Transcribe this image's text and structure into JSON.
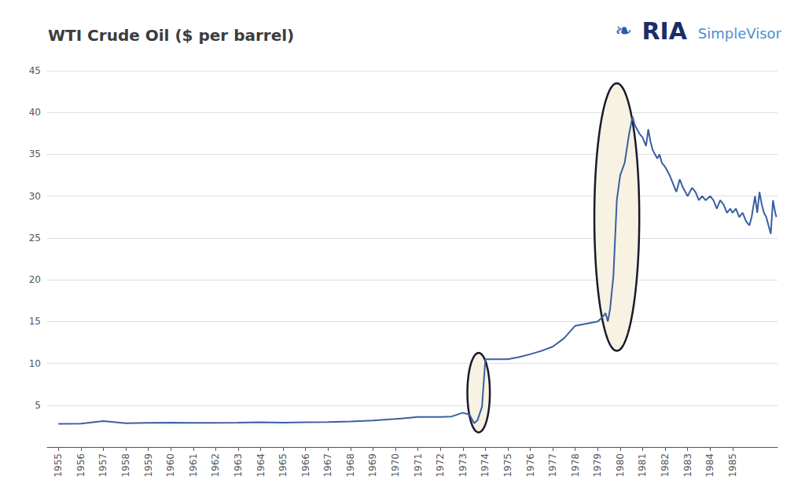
{
  "chart_data": {
    "type": "line",
    "title": "WTI Crude Oil ($ per barrel)",
    "color": "#3a5fa0",
    "grid": "y",
    "xlim": [
      1954.5,
      1987.0
    ],
    "xticks": [
      1955,
      1956,
      1957,
      1958,
      1959,
      1960,
      1961,
      1962,
      1963,
      1964,
      1965,
      1966,
      1967,
      1968,
      1969,
      1970,
      1971,
      1972,
      1973,
      1974,
      1975,
      1976,
      1977,
      1978,
      1979,
      1980,
      1981,
      1982,
      1983,
      1984,
      1985
    ],
    "ylim": [
      0,
      45
    ],
    "yticks": [
      5,
      10,
      15,
      20,
      25,
      30,
      35,
      40,
      45
    ],
    "x": [
      1955.0,
      1956.0,
      1957.0,
      1958.0,
      1959.0,
      1960.0,
      1961.0,
      1962.0,
      1963.0,
      1964.0,
      1965.0,
      1966.0,
      1967.0,
      1968.0,
      1969.0,
      1970.0,
      1971.0,
      1972.0,
      1972.5,
      1973.0,
      1973.3,
      1973.5,
      1973.65,
      1973.85,
      1974.0,
      1974.5,
      1975.0,
      1975.5,
      1976.0,
      1976.5,
      1977.0,
      1977.5,
      1978.0,
      1978.5,
      1979.0,
      1979.2,
      1979.35,
      1979.45,
      1979.55,
      1979.7,
      1979.85,
      1980.0,
      1980.2,
      1980.4,
      1980.55,
      1980.65,
      1980.75,
      1980.85,
      1981.0,
      1981.15,
      1981.25,
      1981.35,
      1981.45,
      1981.55,
      1981.65,
      1981.75,
      1981.85,
      1982.0,
      1982.2,
      1982.35,
      1982.5,
      1982.65,
      1982.8,
      1983.0,
      1983.2,
      1983.35,
      1983.5,
      1983.65,
      1983.8,
      1984.0,
      1984.15,
      1984.3,
      1984.45,
      1984.6,
      1984.75,
      1984.9,
      1985.0,
      1985.15,
      1985.3,
      1985.45,
      1985.6,
      1985.75,
      1985.85,
      1986.0,
      1986.1,
      1986.2,
      1986.3,
      1986.4,
      1986.5,
      1986.6,
      1986.7,
      1986.8,
      1986.9,
      1986.95
    ],
    "values": [
      2.77,
      2.79,
      3.09,
      2.85,
      2.9,
      2.91,
      2.89,
      2.9,
      2.92,
      2.95,
      2.92,
      2.97,
      2.98,
      3.05,
      3.18,
      3.35,
      3.6,
      3.6,
      3.65,
      4.1,
      3.85,
      2.85,
      3.2,
      4.8,
      10.5,
      10.5,
      10.5,
      10.75,
      11.1,
      11.5,
      12.0,
      13.0,
      14.5,
      14.75,
      15.0,
      15.5,
      16.0,
      15.0,
      16.5,
      20.5,
      29.5,
      32.5,
      34.0,
      37.5,
      39.5,
      38.5,
      38.0,
      37.5,
      37.0,
      36.0,
      38.0,
      36.5,
      35.5,
      35.0,
      34.5,
      35.0,
      34.0,
      33.5,
      32.5,
      31.5,
      30.5,
      32.0,
      31.0,
      30.0,
      31.0,
      30.5,
      29.5,
      30.0,
      29.5,
      30.0,
      29.5,
      28.5,
      29.5,
      29.0,
      28.0,
      28.5,
      28.0,
      28.5,
      27.5,
      28.0,
      27.0,
      26.5,
      27.5,
      30.0,
      28.0,
      30.5,
      29.0,
      28.0,
      27.5,
      26.5,
      25.5,
      29.5,
      28.0,
      27.5
    ],
    "ellipses": {
      "color": "#f7f2e2",
      "edge_color": "#1a1a2e",
      "items": [
        {
          "x": 1973.7,
          "y": 6.5,
          "width": 1.0,
          "height": 9.5
        },
        {
          "x": 1979.85,
          "y": 27.5,
          "width": 2.0,
          "height": 32.0
        }
      ]
    },
    "annotations": [
      {
        "text": "❧",
        "color": "#2a5aaa"
      },
      {
        "text": "RIA",
        "color": "#1a2d6b"
      },
      {
        "text": "SimpleVisor",
        "color": "#4a8fd4"
      }
    ]
  }
}
